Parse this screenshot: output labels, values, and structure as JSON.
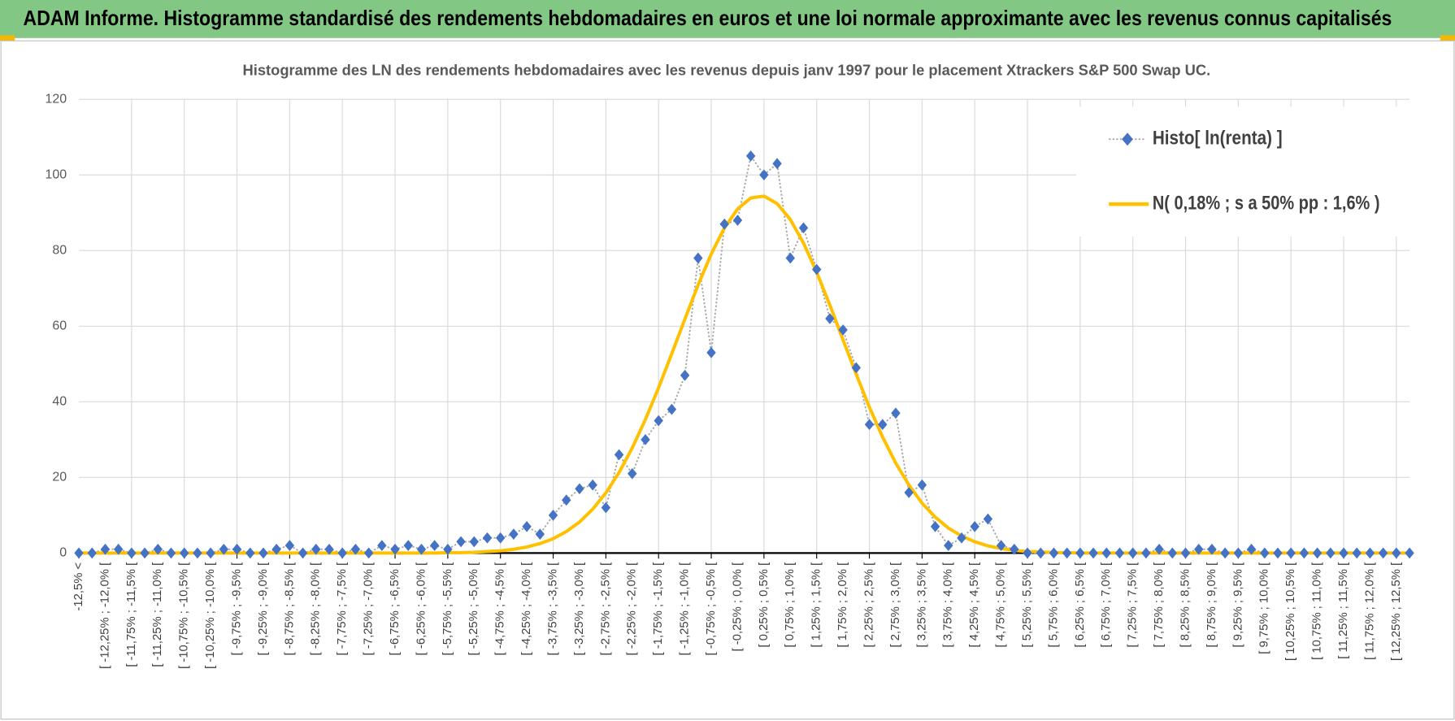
{
  "header": {
    "title": "ADAM Informe. Histogramme standardisé des rendements hebdomadaires en euros et une loi normale approximante avec les revenus connus capitalisés"
  },
  "chart_data": {
    "type": "line",
    "title": "Histogramme des LN des rendements hebdomadaires avec les revenus depuis janv 1997 pour le placement Xtrackers S&P 500 Swap UC.",
    "categories": [
      "-12,5% <",
      null,
      "[ -12,25% ; -12,0% [",
      null,
      "[ -11,75% ; -11,5% [",
      null,
      "[ -11,25% ; -11,0% [",
      null,
      "[ -10,75% ; -10,5% [",
      null,
      "[ -10,25% ; -10,0% [",
      null,
      "[ -9,75% ; -9,5% [",
      null,
      "[ -9,25% ; -9,0% [",
      null,
      "[ -8,75% ; -8,5% [",
      null,
      "[ -8,25% ; -8,0% [",
      null,
      "[ -7,75% ; -7,5% [",
      null,
      "[ -7,25% ; -7,0% [",
      null,
      "[ -6,75% ; -6,5% [",
      null,
      "[ -6,25% ; -6,0% [",
      null,
      "[ -5,75% ; -5,5% [",
      null,
      "[ -5,25% ; -5,0% [",
      null,
      "[ -4,75% ; -4,5% [",
      null,
      "[ -4,25% ; -4,0% [",
      null,
      "[ -3,75% ; -3,5% [",
      null,
      "[ -3,25% ; -3,0% [",
      null,
      "[ -2,75% ; -2,5% [",
      null,
      "[ -2,25% ; -2,0% [",
      null,
      "[ -1,75% ; -1,5% [",
      null,
      "[ -1,25% ; -1,0% [",
      null,
      "[ -0,75% ; -0,5% [",
      null,
      "[ -0,25% ; 0,0% [",
      null,
      "[ 0,25% ; 0,5% [",
      null,
      "[ 0,75% ; 1,0% [",
      null,
      "[ 1,25% ; 1,5% [",
      null,
      "[ 1,75% ; 2,0% [",
      null,
      "[ 2,25% ; 2,5% [",
      null,
      "[ 2,75% ; 3,0% [",
      null,
      "[ 3,25% ; 3,5% [",
      null,
      "[ 3,75% ; 4,0% [",
      null,
      "[ 4,25% ; 4,5% [",
      null,
      "[ 4,75% ; 5,0% [",
      null,
      "[ 5,25% ; 5,5% [",
      null,
      "[ 5,75% ; 6,0% [",
      null,
      "[ 6,25% ; 6,5% [",
      null,
      "[ 6,75% ; 7,0% [",
      null,
      "[ 7,25% ; 7,5% [",
      null,
      "[ 7,75% ; 8,0% [",
      null,
      "[ 8,25% ; 8,5% [",
      null,
      "[ 8,75% ; 9,0% [",
      null,
      "[ 9,25% ; 9,5% [",
      null,
      "[ 9,75% ; 10,0% [",
      null,
      "[ 10,25% ; 10,5% [",
      null,
      "[ 10,75% ; 11,0% [",
      null,
      "[ 11,25% ; 11,5% [",
      null,
      "[ 11,75% ; 12,0% [",
      null,
      "[ 12,25% ; 12,5% [",
      null
    ],
    "series": [
      {
        "name": "Histo[ ln(renta) ]",
        "color": "#4472c4",
        "line_color": "#a5a5a5",
        "values": [
          0,
          0,
          1,
          1,
          0,
          0,
          1,
          0,
          0,
          0,
          0,
          1,
          1,
          0,
          0,
          1,
          2,
          0,
          1,
          1,
          0,
          1,
          0,
          2,
          1,
          2,
          1,
          2,
          1,
          3,
          3,
          4,
          4,
          5,
          7,
          5,
          10,
          14,
          17,
          18,
          12,
          26,
          21,
          30,
          35,
          38,
          47,
          78,
          53,
          87,
          88,
          105,
          100,
          103,
          78,
          86,
          75,
          62,
          59,
          49,
          34,
          34,
          37,
          16,
          18,
          7,
          2,
          4,
          7,
          9,
          2,
          1,
          0,
          0,
          0,
          0,
          0,
          0,
          0,
          0,
          0,
          0,
          1,
          0,
          0,
          1,
          1,
          0,
          0,
          1,
          0,
          0,
          0,
          0,
          0,
          0,
          0,
          0,
          0,
          0,
          0,
          0
        ]
      },
      {
        "name": "N( 0,18% ; s a 50% pp : 1,6% )",
        "color": "#ffc000",
        "values": [
          0,
          0,
          0,
          0,
          0,
          0,
          0,
          0,
          0,
          0,
          0,
          0,
          0,
          0,
          0,
          0,
          0,
          0,
          0,
          0,
          0,
          0,
          0,
          0,
          0,
          0,
          0,
          0,
          0.1,
          0.1,
          0.2,
          0.4,
          0.6,
          1.0,
          1.6,
          2.5,
          3.8,
          5.7,
          8.2,
          11.6,
          15.9,
          21.3,
          27.8,
          35.3,
          43.7,
          52.7,
          61.9,
          70.9,
          79.1,
          86.0,
          91.0,
          93.9,
          94.4,
          92.4,
          88.2,
          82.0,
          74.3,
          65.6,
          56.4,
          47.3,
          38.6,
          30.7,
          23.8,
          18.0,
          13.2,
          9.5,
          6.6,
          4.5,
          3.0,
          1.9,
          1.2,
          0.7,
          0.4,
          0.3,
          0.1,
          0.1,
          0,
          0,
          0,
          0,
          0,
          0,
          0,
          0,
          0,
          0,
          0,
          0,
          0,
          0,
          0,
          0,
          0,
          0,
          0,
          0,
          0,
          0,
          0,
          0,
          0,
          0
        ]
      }
    ],
    "ylim": [
      0,
      120
    ],
    "yticks": [
      0,
      20,
      40,
      60,
      80,
      100,
      120
    ],
    "grid": true,
    "legend": "top-right"
  }
}
